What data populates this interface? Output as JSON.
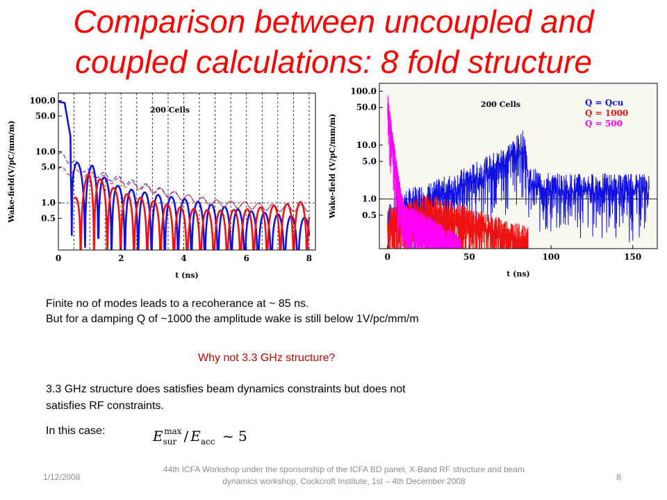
{
  "slide": {
    "title_line1": "Comparison between uncoupled and",
    "title_line2": "coupled calculations: 8 fold structure",
    "text1": "Finite no of modes leads to a recoherance at ~ 85 ns.",
    "text2": "But for a damping Q of ~1000 the amplitude wake is still below 1V/pc/mm/m",
    "question": "Why not 3.3 GHz structure?",
    "text3": "3.3 GHz structure does satisfies beam dynamics constraints but does not",
    "text4": "satisfies RF constraints.",
    "text5": "In this case:",
    "formula": {
      "E": "E",
      "sur": "sur",
      "max": "max",
      "slash": "/",
      "Eacc": "E",
      "acc": "acc",
      "approx": "~ 5"
    }
  },
  "footer": {
    "date": "1/12/2008",
    "center_line1": "44th ICFA Workshop under the sponsorship of the ICFA BD panel,  X-Band RF structure and beam",
    "center_line2": "dynamics workshop,  Cockcroft Institute,  1st – 4th December  2008",
    "page": "8"
  },
  "chart_data": [
    {
      "type": "line",
      "xlabel": "t (ns)",
      "ylabel": "Wake-field(V/pC/mm/m)",
      "annotation": "200 Cells",
      "xlim": [
        0,
        8.2
      ],
      "x_ticks": [
        "0",
        "2",
        "4",
        "6",
        "8"
      ],
      "y_scale": "log",
      "ylim": [
        0.12,
        140
      ],
      "y_ticks": [
        "100.0",
        "50.0",
        "10.0",
        "5.0",
        "1.0",
        "0.5"
      ],
      "grid": "dashed vertical lines at bunch spacing; horizontal line at 1.0",
      "series": [
        {
          "color": "#1010e0",
          "values": [
            [
              0.0,
              95
            ],
            [
              0.2,
              90
            ],
            [
              0.5,
              8
            ],
            [
              0.8,
              4
            ],
            [
              1.1,
              5.5
            ],
            [
              1.5,
              3
            ],
            [
              2,
              2
            ],
            [
              3,
              1.5
            ],
            [
              4,
              1.2
            ],
            [
              5,
              0.9
            ],
            [
              6,
              0.7
            ],
            [
              7,
              0.6
            ],
            [
              8,
              0.5
            ]
          ]
        },
        {
          "color": "#ee1111",
          "values": [
            [
              0.5,
              1.2
            ],
            [
              1,
              4
            ],
            [
              1.5,
              2.5
            ],
            [
              2,
              1.6
            ],
            [
              3,
              1.1
            ],
            [
              4,
              0.8
            ],
            [
              5,
              0.7
            ],
            [
              6,
              0.75
            ],
            [
              7,
              0.9
            ],
            [
              8,
              1.1
            ]
          ]
        },
        {
          "color": "#1010e0",
          "dashed": true,
          "values": [
            [
              0,
              9
            ],
            [
              0.5,
              6
            ],
            [
              1,
              4
            ],
            [
              2,
              2.8
            ],
            [
              3,
              1.9
            ],
            [
              4,
              1.3
            ],
            [
              5,
              1
            ],
            [
              6,
              0.9
            ],
            [
              7,
              0.8
            ],
            [
              8,
              0.8
            ]
          ]
        },
        {
          "color": "#ee1111",
          "dashed": true,
          "values": [
            [
              0,
              4.5
            ],
            [
              0.5,
              4
            ],
            [
              1,
              3.5
            ],
            [
              2,
              2.5
            ],
            [
              3,
              1.8
            ],
            [
              4,
              1.3
            ],
            [
              5,
              1
            ],
            [
              6,
              0.9
            ],
            [
              7,
              0.8
            ],
            [
              8,
              0.8
            ]
          ]
        }
      ]
    },
    {
      "type": "line",
      "xlabel": "t (ns)",
      "ylabel": "Wake-field (V/pC/mm/m)",
      "annotation": "200 Cells",
      "xlim": [
        -5,
        165
      ],
      "x_ticks": [
        "0",
        "50",
        "100",
        "150"
      ],
      "y_scale": "log",
      "ylim": [
        0.12,
        140
      ],
      "y_ticks": [
        "100.0",
        "50.0",
        "10.0",
        "5.0",
        "1.0",
        "0.5"
      ],
      "grid": "horizontal line at 1.0",
      "legend": {
        "position": "top-right",
        "items": [
          {
            "label": "Q = Qcu",
            "color": "#1010e0"
          },
          {
            "label": "Q = 1000",
            "color": "#ee1111"
          },
          {
            "label": "Q = 500",
            "color": "#ff00ff"
          }
        ]
      },
      "series": [
        {
          "name": "Q = Qcu",
          "color": "#1010e0",
          "envelope": [
            [
              0,
              0.8
            ],
            [
              10,
              1.5
            ],
            [
              25,
              2
            ],
            [
              40,
              3
            ],
            [
              55,
              5
            ],
            [
              70,
              9
            ],
            [
              84,
              20
            ],
            [
              86,
              4
            ],
            [
              100,
              3
            ],
            [
              120,
              3
            ],
            [
              140,
              3
            ],
            [
              160,
              3
            ]
          ]
        },
        {
          "name": "Q = 1000",
          "color": "#ee1111",
          "envelope": [
            [
              0,
              0.7
            ],
            [
              10,
              0.8
            ],
            [
              20,
              1.2
            ],
            [
              30,
              1.1
            ],
            [
              40,
              0.9
            ],
            [
              50,
              0.7
            ],
            [
              60,
              0.55
            ],
            [
              70,
              0.45
            ],
            [
              80,
              0.35
            ],
            [
              86,
              0.3
            ]
          ]
        },
        {
          "name": "Q = 500",
          "color": "#ff00ff",
          "envelope": [
            [
              0,
              100
            ],
            [
              3,
              20
            ],
            [
              6,
              4
            ],
            [
              10,
              0.8
            ],
            [
              20,
              0.6
            ],
            [
              30,
              0.4
            ],
            [
              40,
              0.25
            ],
            [
              45,
              0.2
            ]
          ]
        }
      ]
    }
  ]
}
